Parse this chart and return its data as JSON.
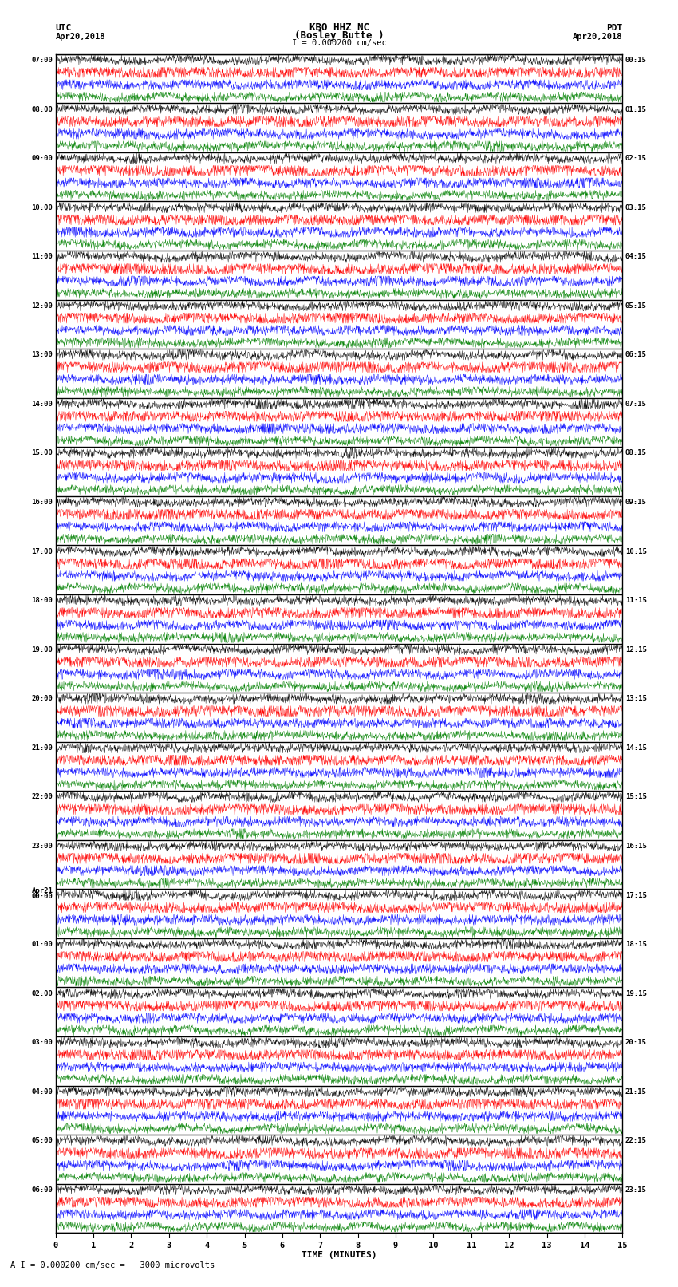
{
  "title_line1": "KBO HHZ NC",
  "title_line2": "(Bosley Butte )",
  "scale_label": "I = 0.000200 cm/sec",
  "footer_label": "A I = 0.000200 cm/sec =   3000 microvolts",
  "xlabel": "TIME (MINUTES)",
  "left_header_line1": "UTC",
  "left_header_line2": "Apr20,2018",
  "right_header_line1": "PDT",
  "right_header_line2": "Apr20,2018",
  "n_hour_groups": 24,
  "traces_per_group": 4,
  "x_ticks": [
    0,
    1,
    2,
    3,
    4,
    5,
    6,
    7,
    8,
    9,
    10,
    11,
    12,
    13,
    14,
    15
  ],
  "colors_cycle": [
    "black",
    "red",
    "blue",
    "green"
  ],
  "bg_color": "white",
  "left_times": [
    "07:00",
    "08:00",
    "09:00",
    "10:00",
    "11:00",
    "12:00",
    "13:00",
    "14:00",
    "15:00",
    "16:00",
    "17:00",
    "18:00",
    "19:00",
    "20:00",
    "21:00",
    "22:00",
    "23:00",
    "Apr21",
    "01:00",
    "02:00",
    "03:00",
    "04:00",
    "05:00",
    "06:00"
  ],
  "left_times_sub": [
    "",
    "",
    "",
    "",
    "",
    "",
    "",
    "",
    "",
    "",
    "",
    "",
    "",
    "",
    "",
    "",
    "",
    "00:00",
    "",
    "",
    "",
    "",
    "",
    ""
  ],
  "right_times": [
    "00:15",
    "01:15",
    "02:15",
    "03:15",
    "04:15",
    "05:15",
    "06:15",
    "07:15",
    "08:15",
    "09:15",
    "10:15",
    "11:15",
    "12:15",
    "13:15",
    "14:15",
    "15:15",
    "16:15",
    "17:15",
    "18:15",
    "19:15",
    "20:15",
    "21:15",
    "22:15",
    "23:15"
  ]
}
